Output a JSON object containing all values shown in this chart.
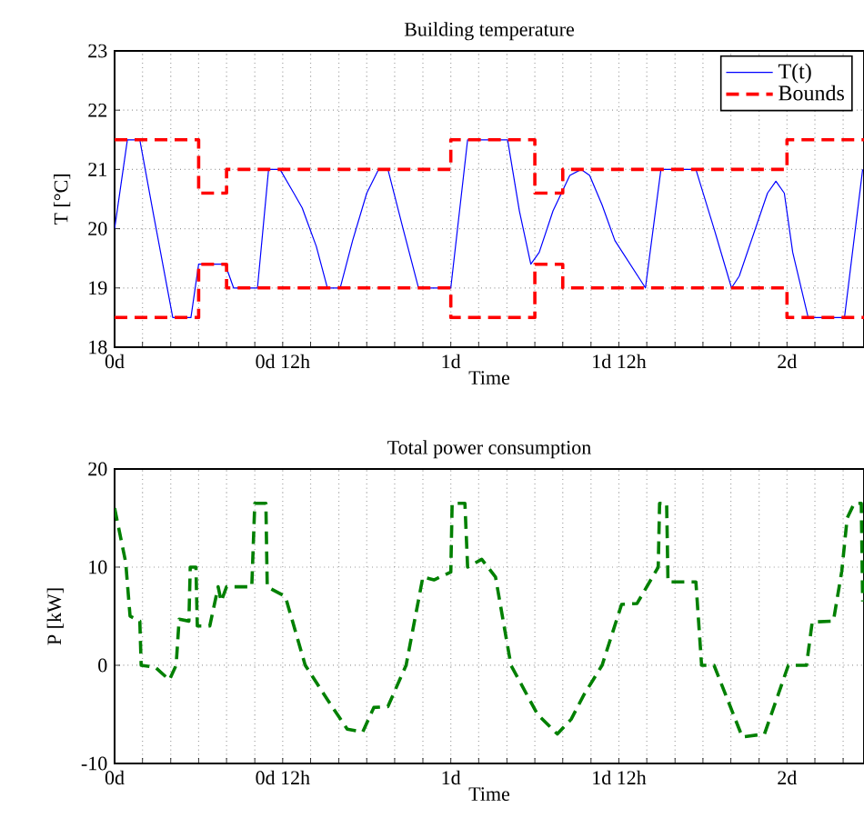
{
  "chart_data": [
    {
      "type": "line",
      "title": "Building temperature",
      "xlabel": "Time",
      "ylabel": "T [°C]",
      "xlim": [
        0,
        2.229
      ],
      "ylim": [
        18,
        23
      ],
      "xticks": [
        {
          "value": 0,
          "label": "0d"
        },
        {
          "value": 0.083,
          "label": null
        },
        {
          "value": 0.167,
          "label": null
        },
        {
          "value": 0.25,
          "label": null
        },
        {
          "value": 0.333,
          "label": null
        },
        {
          "value": 0.417,
          "label": null
        },
        {
          "value": 0.5,
          "label": "0d 12h"
        },
        {
          "value": 0.583,
          "label": null
        },
        {
          "value": 0.667,
          "label": null
        },
        {
          "value": 0.75,
          "label": null
        },
        {
          "value": 0.833,
          "label": null
        },
        {
          "value": 0.917,
          "label": null
        },
        {
          "value": 1,
          "label": "1d"
        },
        {
          "value": 1.083,
          "label": null
        },
        {
          "value": 1.167,
          "label": null
        },
        {
          "value": 1.25,
          "label": null
        },
        {
          "value": 1.333,
          "label": null
        },
        {
          "value": 1.417,
          "label": null
        },
        {
          "value": 1.5,
          "label": "1d 12h"
        },
        {
          "value": 1.583,
          "label": null
        },
        {
          "value": 1.667,
          "label": null
        },
        {
          "value": 1.75,
          "label": null
        },
        {
          "value": 1.833,
          "label": null
        },
        {
          "value": 1.917,
          "label": null
        },
        {
          "value": 2,
          "label": "2d"
        },
        {
          "value": 2.083,
          "label": null
        },
        {
          "value": 2.167,
          "label": null
        }
      ],
      "yticks": [
        18,
        19,
        20,
        21,
        22,
        23
      ],
      "grid": true,
      "legend": "top right",
      "series": [
        {
          "name": "T(t)",
          "color": "#0000ff",
          "line_style": "solid",
          "x": [
            0,
            0.038,
            0.075,
            0.117,
            0.173,
            0.227,
            0.25,
            0.329,
            0.354,
            0.425,
            0.458,
            0.492,
            0.533,
            0.558,
            0.6,
            0.633,
            0.671,
            0.708,
            0.75,
            0.785,
            0.813,
            0.858,
            0.904,
            1.0,
            1.05,
            1.169,
            1.204,
            1.238,
            1.263,
            1.304,
            1.354,
            1.388,
            1.413,
            1.45,
            1.488,
            1.579,
            1.625,
            1.729,
            1.783,
            1.835,
            1.858,
            1.9,
            1.942,
            1.967,
            1.992,
            2.017,
            2.063,
            2.171,
            2.225
          ],
          "values": [
            20.0,
            21.5,
            21.5,
            20.2,
            18.5,
            18.5,
            19.4,
            19.4,
            19.0,
            19.0,
            21.0,
            21.0,
            20.6,
            20.35,
            19.7,
            19.0,
            19.0,
            19.8,
            20.6,
            21.0,
            21.0,
            20.0,
            19.0,
            19.0,
            21.5,
            21.5,
            20.3,
            19.4,
            19.6,
            20.3,
            20.9,
            21.0,
            20.9,
            20.4,
            19.8,
            19.0,
            21.0,
            21.0,
            20.0,
            19.0,
            19.2,
            19.9,
            20.6,
            20.8,
            20.6,
            19.6,
            18.5,
            18.5,
            21.0
          ]
        },
        {
          "name": "Bounds",
          "type": "step",
          "color": "#ff0000",
          "line_style": "dashed",
          "x": [
            0,
            0.25,
            0.333,
            1,
            1.25,
            1.333,
            2,
            2.229
          ],
          "values": [
            21.5,
            20.6,
            21.0,
            21.5,
            20.6,
            21.0,
            21.5,
            21.5
          ]
        },
        {
          "type": "step",
          "color": "#ff0000",
          "line_style": "dashed",
          "x": [
            0,
            0.25,
            0.333,
            1,
            1.25,
            1.333,
            2,
            2.229
          ],
          "values": [
            18.5,
            19.4,
            19.0,
            18.5,
            19.4,
            19.0,
            18.5,
            18.5
          ]
        }
      ]
    },
    {
      "type": "line",
      "title": "Total power consumption",
      "xlabel": "Time",
      "ylabel": "P [kW]",
      "xlim": [
        0,
        2.229
      ],
      "ylim": [
        -10,
        20
      ],
      "xticks": [
        {
          "value": 0,
          "label": "0d"
        },
        {
          "value": 0.083,
          "label": null
        },
        {
          "value": 0.167,
          "label": null
        },
        {
          "value": 0.25,
          "label": null
        },
        {
          "value": 0.333,
          "label": null
        },
        {
          "value": 0.417,
          "label": null
        },
        {
          "value": 0.5,
          "label": "0d 12h"
        },
        {
          "value": 0.583,
          "label": null
        },
        {
          "value": 0.667,
          "label": null
        },
        {
          "value": 0.75,
          "label": null
        },
        {
          "value": 0.833,
          "label": null
        },
        {
          "value": 0.917,
          "label": null
        },
        {
          "value": 1,
          "label": "1d"
        },
        {
          "value": 1.083,
          "label": null
        },
        {
          "value": 1.167,
          "label": null
        },
        {
          "value": 1.25,
          "label": null
        },
        {
          "value": 1.333,
          "label": null
        },
        {
          "value": 1.417,
          "label": null
        },
        {
          "value": 1.5,
          "label": "1d 12h"
        },
        {
          "value": 1.583,
          "label": null
        },
        {
          "value": 1.667,
          "label": null
        },
        {
          "value": 1.75,
          "label": null
        },
        {
          "value": 1.833,
          "label": null
        },
        {
          "value": 1.917,
          "label": null
        },
        {
          "value": 2,
          "label": "2d"
        },
        {
          "value": 2.083,
          "label": null
        },
        {
          "value": 2.167,
          "label": null
        }
      ],
      "yticks": [
        -10,
        0,
        10,
        20
      ],
      "grid": true,
      "series": [
        {
          "color": "#008000",
          "line_style": "dashed",
          "x": [
            0,
            0.033,
            0.046,
            0.075,
            0.079,
            0.121,
            0.163,
            0.183,
            0.192,
            0.221,
            0.225,
            0.242,
            0.246,
            0.283,
            0.308,
            0.317,
            0.333,
            0.408,
            0.417,
            0.45,
            0.454,
            0.508,
            0.567,
            0.633,
            0.692,
            0.738,
            0.771,
            0.813,
            0.867,
            0.917,
            0.95,
            1.0,
            1.004,
            1.042,
            1.05,
            1.092,
            1.133,
            1.179,
            1.258,
            1.317,
            1.358,
            1.396,
            1.45,
            1.508,
            1.554,
            1.617,
            1.621,
            1.642,
            1.646,
            1.729,
            1.746,
            1.783,
            1.867,
            1.933,
            2.004,
            2.058,
            2.075,
            2.138,
            2.163,
            2.179,
            2.2,
            2.221,
            2.225
          ],
          "values": [
            16,
            10.5,
            5,
            4.5,
            0,
            -0.2,
            -1.5,
            0,
            4.7,
            4.5,
            10,
            10,
            4,
            4,
            8,
            6.5,
            8,
            8,
            16.5,
            16.5,
            8,
            7,
            0,
            -3.5,
            -6.5,
            -6.8,
            -4.3,
            -4.2,
            0,
            9,
            8.7,
            9.5,
            16.5,
            16.5,
            10,
            10.8,
            9,
            0,
            -5,
            -7,
            -5.5,
            -3,
            0,
            6.2,
            6.3,
            10,
            16.5,
            16.5,
            8.5,
            8.5,
            0,
            0,
            -7.3,
            -7,
            0,
            0,
            4.4,
            4.5,
            9.6,
            15,
            16.5,
            16.5,
            6.5
          ]
        }
      ]
    }
  ]
}
